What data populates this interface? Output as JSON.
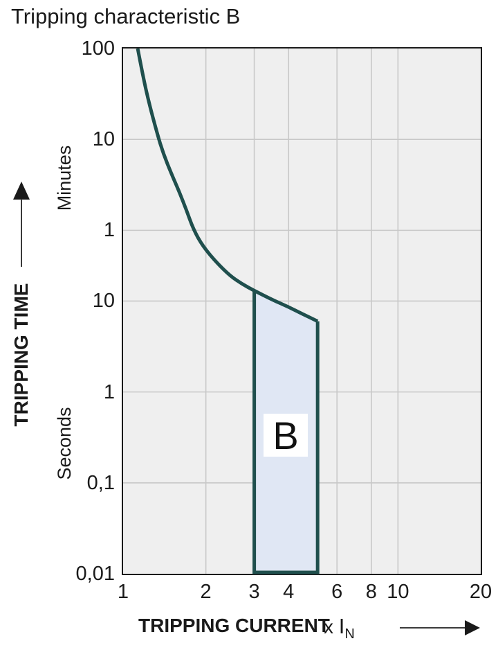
{
  "title": "Tripping characteristic B",
  "region_label": "B",
  "colors": {
    "curve": "#1f4f4d",
    "band_fill": "#e0e7f4",
    "plot_background": "#efefef",
    "gridline": "#c8c8c8",
    "plot_border": "#1a1a1a",
    "text": "#1a1a1a"
  },
  "icons": {
    "y_axis_arrow": "up-arrow",
    "x_axis_arrow": "right-arrow"
  },
  "y_axis": {
    "title": "TRIPPING TIME",
    "unit_upper": "Minutes",
    "unit_lower": "Seconds",
    "ticks": [
      {
        "label": "100",
        "seconds": 6000
      },
      {
        "label": "10",
        "seconds": 600
      },
      {
        "label": "1",
        "seconds": 60
      },
      {
        "label": "10",
        "seconds": 10
      },
      {
        "label": "1",
        "seconds": 1
      },
      {
        "label": "0,1",
        "seconds": 0.1
      },
      {
        "label": "0,01",
        "seconds": 0.01
      }
    ]
  },
  "x_axis": {
    "title": "TRIPPING CURRENT",
    "multiplier": "x",
    "symbol": "I",
    "symbol_sub": "N",
    "ticks": [
      {
        "label": "1",
        "value": 1
      },
      {
        "label": "2",
        "value": 2
      },
      {
        "label": "3",
        "value": 3
      },
      {
        "label": "4",
        "value": 4
      },
      {
        "label": "6",
        "value": 6
      },
      {
        "label": "8",
        "value": 8
      },
      {
        "label": "10",
        "value": 10
      },
      {
        "label": "20",
        "value": 20
      }
    ]
  },
  "chart_data": {
    "type": "line",
    "title": "Tripping characteristic B",
    "xlabel": "TRIPPING CURRENT x IN",
    "ylabel": "TRIPPING TIME (minutes above 60 s, seconds below)",
    "x_scale": "log",
    "y_scale": "log",
    "xlim": [
      1,
      20
    ],
    "ylim_seconds": [
      0.01,
      6000
    ],
    "x_ticks": [
      1,
      2,
      3,
      4,
      6,
      8,
      10,
      20
    ],
    "y_ticks_minutes": [
      100,
      10,
      1
    ],
    "y_ticks_seconds": [
      10,
      1,
      0.1,
      0.01
    ],
    "grid": true,
    "series": [
      {
        "name": "upper tripping limit curve",
        "points_x_by_seconds": [
          [
            1.13,
            6000
          ],
          [
            1.18,
            3000
          ],
          [
            1.25,
            1400
          ],
          [
            1.33,
            700
          ],
          [
            1.4,
            420
          ],
          [
            1.5,
            250
          ],
          [
            1.6,
            160
          ],
          [
            1.7,
            100
          ],
          [
            1.8,
            62
          ],
          [
            1.95,
            40
          ],
          [
            2.2,
            26
          ],
          [
            2.45,
            19
          ],
          [
            2.7,
            15.5
          ],
          [
            3.0,
            13
          ],
          [
            3.5,
            10.3
          ],
          [
            4.0,
            8.6
          ],
          [
            4.5,
            7.2
          ],
          [
            5.1,
            6.0
          ]
        ]
      }
    ],
    "band": {
      "label": "B",
      "description": "instantaneous tripping range",
      "x_range": [
        3,
        5.1
      ],
      "y_bottom_seconds": 0.01,
      "top_follows_curve": true
    }
  }
}
